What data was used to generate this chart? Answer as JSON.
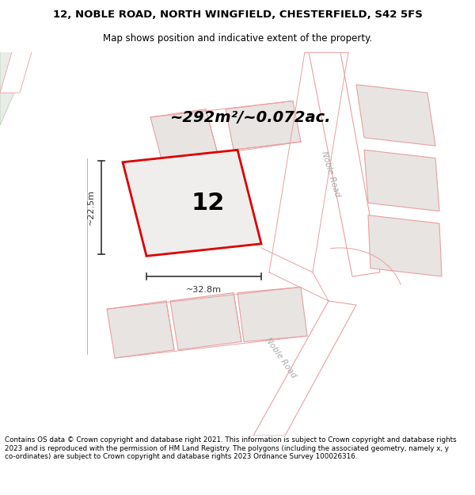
{
  "title_line1": "12, NOBLE ROAD, NORTH WINGFIELD, CHESTERFIELD, S42 5FS",
  "title_line2": "Map shows position and indicative extent of the property.",
  "footer_text": "Contains OS data © Crown copyright and database right 2021. This information is subject to Crown copyright and database rights 2023 and is reproduced with the permission of HM Land Registry. The polygons (including the associated geometry, namely x, y co-ordinates) are subject to Crown copyright and database rights 2023 Ordnance Survey 100026316.",
  "area_text": "~292m²/~0.072ac.",
  "property_number": "12",
  "dim_width": "~32.8m",
  "dim_height": "~22.5m",
  "bg_color": "#f5f3f2",
  "property_fill": "#f0eeec",
  "property_edge": "#dd0000",
  "neighbor_fill": "#e8e4e2",
  "neighbor_edge": "#e8a0a0",
  "road_color": "#e8a0a0",
  "road_label_color": "#aaaaaa",
  "road_label1": "Noble Road",
  "road_label2": "Noble Road",
  "dim_color": "#333333",
  "area_fontsize": 14,
  "num_fontsize": 22
}
